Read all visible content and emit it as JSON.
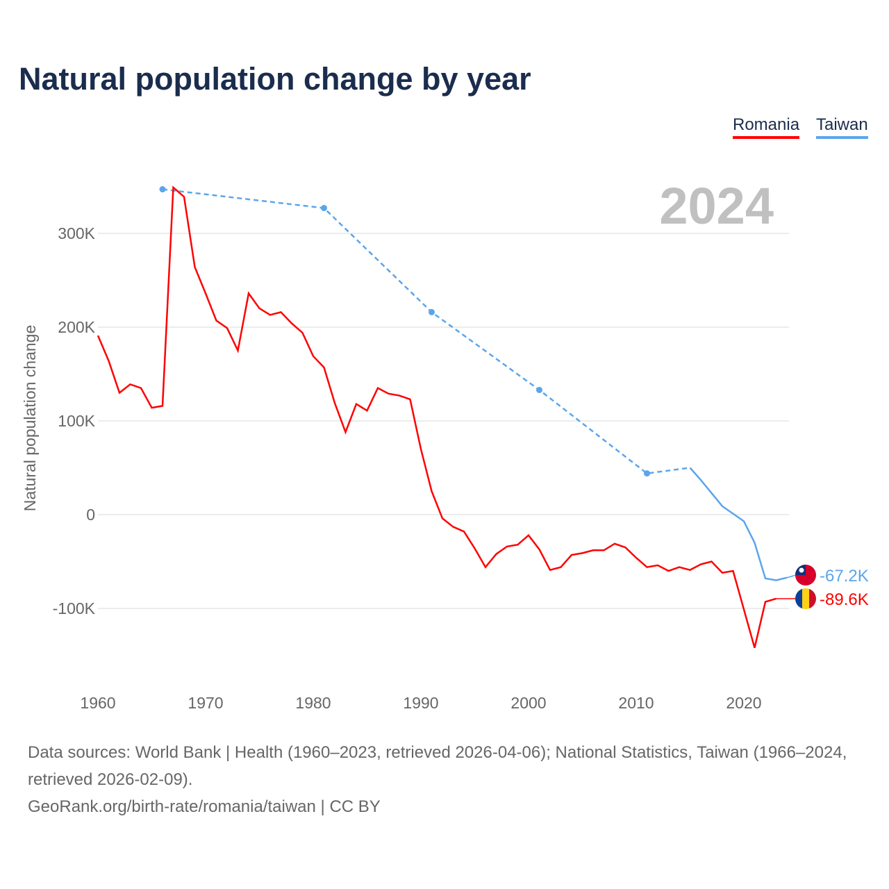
{
  "chart_data": {
    "type": "line",
    "title": "Natural population change by year",
    "xlabel": "",
    "ylabel": "Natural population change",
    "xlim": [
      1960,
      2024
    ],
    "ylim": [
      -160000,
      360000
    ],
    "grid": true,
    "legend_placement": "top-right",
    "year_watermark": "2024",
    "x_ticks": [
      1960,
      1970,
      1980,
      1990,
      2000,
      2010,
      2020
    ],
    "x_tick_labels": [
      "1960",
      "1970",
      "1980",
      "1990",
      "2000",
      "2010",
      "2020"
    ],
    "y_ticks": [
      -100000,
      0,
      100000,
      200000,
      300000
    ],
    "y_tick_labels": [
      "-100K",
      "0",
      "100K",
      "200K",
      "300K"
    ],
    "series": [
      {
        "name": "Romania",
        "color": "#ff0000",
        "end_label": "-89.6K",
        "x": [
          1960,
          1961,
          1962,
          1963,
          1964,
          1965,
          1966,
          1967,
          1968,
          1969,
          1970,
          1971,
          1972,
          1973,
          1974,
          1975,
          1976,
          1977,
          1978,
          1979,
          1980,
          1981,
          1982,
          1983,
          1984,
          1985,
          1986,
          1987,
          1988,
          1989,
          1990,
          1991,
          1992,
          1993,
          1994,
          1995,
          1996,
          1997,
          1998,
          1999,
          2000,
          2001,
          2002,
          2003,
          2004,
          2005,
          2006,
          2007,
          2008,
          2009,
          2010,
          2011,
          2012,
          2013,
          2014,
          2015,
          2016,
          2017,
          2018,
          2019,
          2020,
          2021,
          2022,
          2023
        ],
        "y": [
          191000,
          164000,
          130000,
          139000,
          135000,
          114000,
          116000,
          349000,
          339000,
          264000,
          236000,
          207000,
          199000,
          175000,
          236000,
          220000,
          213000,
          216000,
          204000,
          194000,
          169000,
          157000,
          119000,
          88000,
          118000,
          111000,
          135000,
          129000,
          127000,
          123000,
          70000,
          25000,
          -4000,
          -13000,
          -18000,
          -36000,
          -56000,
          -42000,
          -34000,
          -32000,
          -22000,
          -37000,
          -59000,
          -56000,
          -43000,
          -41000,
          -38000,
          -38000,
          -31000,
          -35000,
          -46000,
          -56000,
          -54000,
          -60000,
          -56000,
          -59000,
          -53000,
          -50000,
          -62000,
          -60000,
          -101000,
          -142000,
          -93000,
          -89600
        ]
      },
      {
        "name": "Taiwan",
        "color": "#5aa5ec",
        "end_label": "-67.2K",
        "dashed_until": 2015,
        "x": [
          1966,
          1981,
          1991,
          2001,
          2011,
          2015,
          2016,
          2017,
          2018,
          2019,
          2020,
          2021,
          2022,
          2023,
          2024
        ],
        "y": [
          347000,
          327000,
          216000,
          133000,
          44000,
          50000,
          37000,
          23000,
          9000,
          1000,
          -7000,
          -30000,
          -68000,
          -70000,
          -67200
        ]
      }
    ]
  },
  "footer": {
    "line1": "Data sources: World Bank | Health (1960–2023, retrieved 2026-04-06); National Statistics, Taiwan (1966–2024, retrieved 2026-02-09).",
    "line2": "GeoRank.org/birth-rate/romania/taiwan | CC BY"
  }
}
